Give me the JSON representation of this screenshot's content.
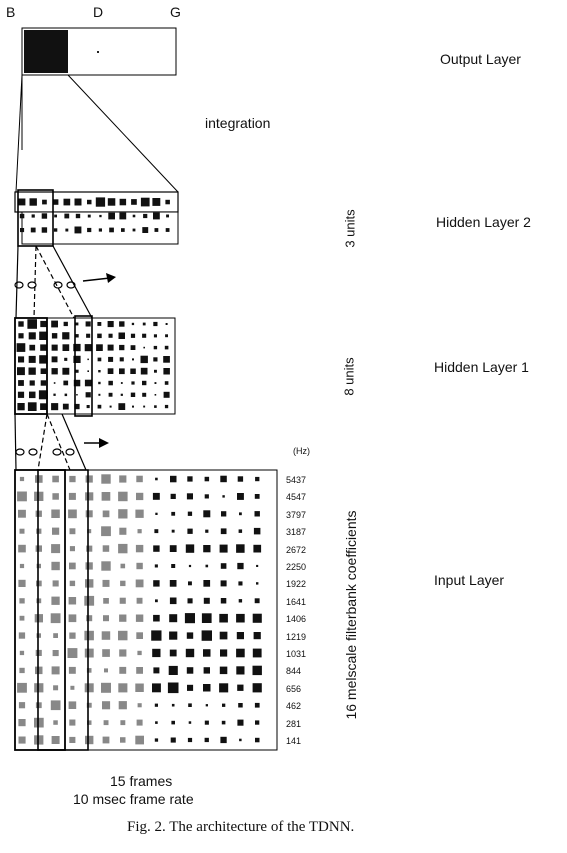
{
  "output": {
    "labels": [
      "B",
      "D",
      "G"
    ],
    "layer_name": "Output Layer"
  },
  "integration_label": "integration",
  "hidden2": {
    "layer_name": "Hidden Layer 2",
    "units_label": "3 units"
  },
  "hidden1": {
    "layer_name": "Hidden Layer 1",
    "units_label": "8 units"
  },
  "input": {
    "layer_name": "Input Layer",
    "units_label": "16 melscale filterbank coefficients",
    "hz_label": "(Hz)",
    "frequencies": [
      "5437",
      "4547",
      "3797",
      "3187",
      "2672",
      "2250",
      "1922",
      "1641",
      "1406",
      "1219",
      "1031",
      "844",
      "656",
      "462",
      "281",
      "141"
    ]
  },
  "frames_label": "15 frames",
  "frame_rate_label": "10 msec frame rate",
  "caption": "Fig. 2.  The architecture of the TDNN."
}
